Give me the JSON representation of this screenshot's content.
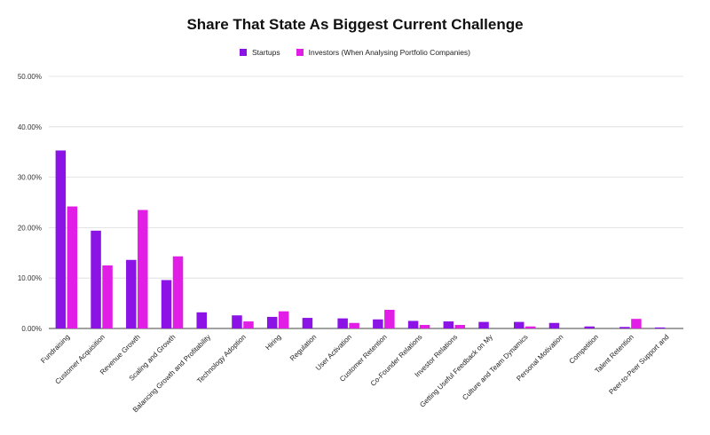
{
  "chart_data": {
    "type": "bar",
    "title": "Share That State As Biggest Current Challenge",
    "xlabel": "",
    "ylabel": "",
    "ylim": [
      0,
      50
    ],
    "yticks": [
      "0.00%",
      "10.00%",
      "20.00%",
      "30.00%",
      "40.00%",
      "50.00%"
    ],
    "grid": true,
    "legend_position": "top-center",
    "categories": [
      "Fundraising",
      "Customer Acquisition",
      "Revenue Growth",
      "Scaling and Growth",
      "Balancing Growth and Profitability",
      "Technology Adoption",
      "Hiring",
      "Regulation",
      "User Activation",
      "Customer Retention",
      "Co-Founder Relations",
      "Investor Relations",
      "Getting Useful Feedback on My",
      "Culture and Team Dynamics",
      "Personal Motivation",
      "Competition",
      "Talent Retention",
      "Peer-to-Peer Support and"
    ],
    "series": [
      {
        "name": "Startups",
        "color": "#8b13e6",
        "values": [
          35.3,
          19.4,
          13.6,
          9.6,
          3.2,
          2.6,
          2.3,
          2.1,
          2.0,
          1.8,
          1.5,
          1.4,
          1.3,
          1.3,
          1.1,
          0.4,
          0.3,
          0.2
        ]
      },
      {
        "name": "Investors (When Analysing Portfolio Companies)",
        "color": "#e21de6",
        "values": [
          24.2,
          12.5,
          23.5,
          14.3,
          0,
          1.4,
          3.4,
          0,
          1.1,
          3.7,
          0.7,
          0.7,
          0,
          0.4,
          0,
          0,
          1.9,
          0
        ]
      }
    ]
  }
}
